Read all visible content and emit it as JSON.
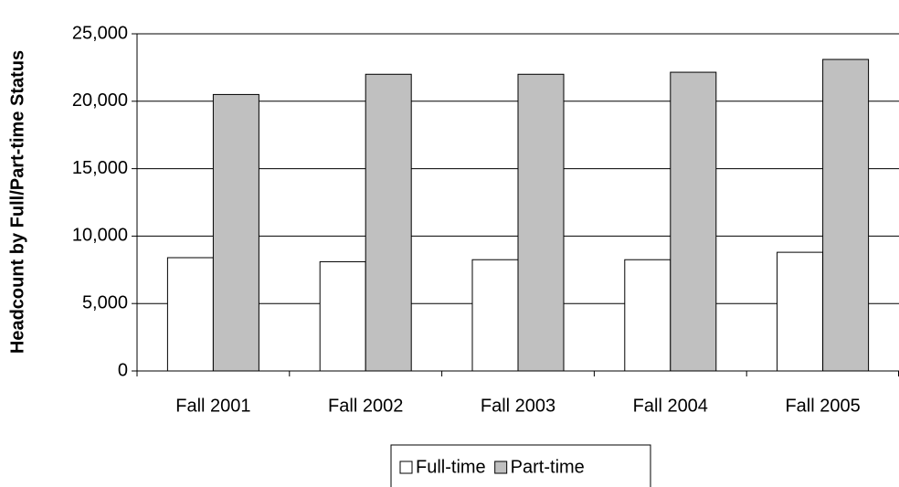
{
  "chart_data": {
    "type": "bar",
    "y_label": "Headcount by Full/Part-time Status",
    "categories": [
      "Fall 2001",
      "Fall 2002",
      "Fall 2003",
      "Fall 2004",
      "Fall 2005"
    ],
    "series": [
      {
        "name": "Full-time",
        "color": "#ffffff",
        "values": [
          8400,
          8100,
          8250,
          8250,
          8800
        ]
      },
      {
        "name": "Part-time",
        "color": "#c0c0c0",
        "values": [
          20500,
          22000,
          22000,
          22150,
          23100
        ]
      }
    ],
    "ylim": [
      0,
      25000
    ],
    "yticks": [
      0,
      {
        "value": 5000,
        "label": "5,000"
      },
      {
        "value": 10000,
        "label": "10,000"
      },
      {
        "value": 15000,
        "label": "15,000"
      },
      {
        "value": 20000,
        "label": "20,000"
      },
      {
        "value": 25000,
        "label": "25,000"
      }
    ],
    "grid": true
  }
}
